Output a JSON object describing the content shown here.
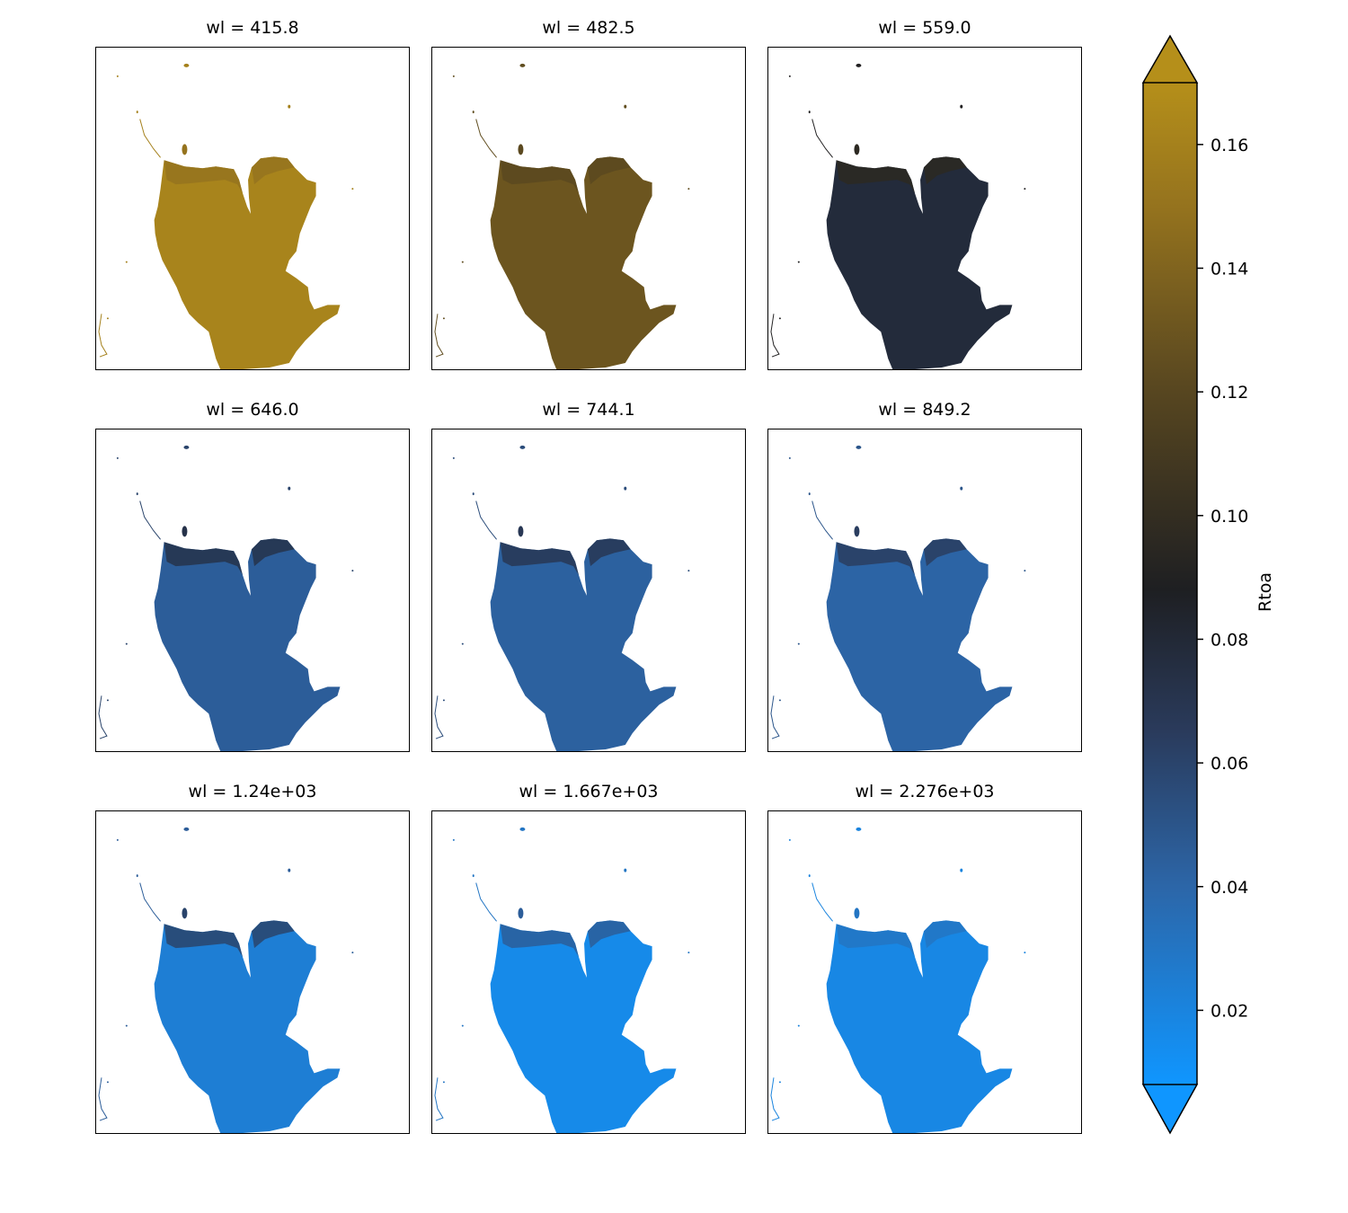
{
  "chart_data": {
    "type": "heatmap",
    "variable": "Rtoa",
    "panels": [
      {
        "title": "wl = 415.8",
        "wl": 415.8,
        "land_rtoa": 0.162,
        "fringe_rtoa": 0.15,
        "water_rtoa": 0.16
      },
      {
        "title": "wl = 482.5",
        "wl": 482.5,
        "land_rtoa": 0.13,
        "fringe_rtoa": 0.122,
        "water_rtoa": 0.125
      },
      {
        "title": "wl = 559.0",
        "wl": 559.0,
        "land_rtoa": 0.078,
        "fringe_rtoa": 0.096,
        "water_rtoa": 0.09
      },
      {
        "title": "wl = 646.0",
        "wl": 646.0,
        "land_rtoa": 0.045,
        "fringe_rtoa": 0.072,
        "water_rtoa": 0.06
      },
      {
        "title": "wl = 744.1",
        "wl": 744.1,
        "land_rtoa": 0.043,
        "fringe_rtoa": 0.068,
        "water_rtoa": 0.055
      },
      {
        "title": "wl = 849.2",
        "wl": 849.2,
        "land_rtoa": 0.041,
        "fringe_rtoa": 0.064,
        "water_rtoa": 0.05
      },
      {
        "title": "wl = 1.24e+03",
        "wl": 1240,
        "land_rtoa": 0.024,
        "fringe_rtoa": 0.06,
        "water_rtoa": 0.045
      },
      {
        "title": "wl = 1.667e+03",
        "wl": 1667,
        "land_rtoa": 0.016,
        "fringe_rtoa": 0.045,
        "water_rtoa": 0.03
      },
      {
        "title": "wl = 2.276e+03",
        "wl": 2276,
        "land_rtoa": 0.018,
        "fringe_rtoa": 0.03,
        "water_rtoa": 0.02
      }
    ],
    "colorbar": {
      "label": "Rtoa",
      "vmin": 0.008,
      "vmax": 0.17,
      "extend": "both",
      "ticks": [
        0.02,
        0.04,
        0.06,
        0.08,
        0.1,
        0.12,
        0.14,
        0.16
      ],
      "tick_labels": [
        "0.02",
        "0.04",
        "0.06",
        "0.08",
        "0.10",
        "0.12",
        "0.14",
        "0.16"
      ],
      "colormap_stops": [
        {
          "value": 0.008,
          "color": "#0f96ff"
        },
        {
          "value": 0.04,
          "color": "#2c66a8"
        },
        {
          "value": 0.065,
          "color": "#2a3b5c"
        },
        {
          "value": 0.088,
          "color": "#1e1f22"
        },
        {
          "value": 0.12,
          "color": "#574620"
        },
        {
          "value": 0.15,
          "color": "#95731e"
        },
        {
          "value": 0.17,
          "color": "#b58f1a"
        }
      ]
    }
  }
}
